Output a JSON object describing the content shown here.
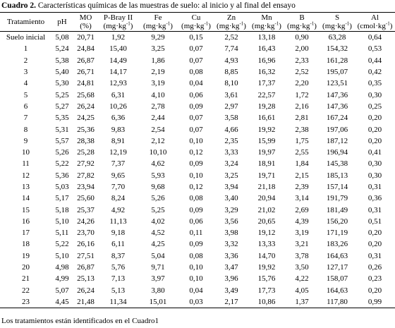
{
  "caption": {
    "label": "Cuadro 2.",
    "text": "Características químicas de las muestras de suelo: al inicio y al final del ensayo"
  },
  "table": {
    "headers": [
      {
        "name": "Tratamiento"
      },
      {
        "name": "pH"
      },
      {
        "name": "MO",
        "unit": "(%)"
      },
      {
        "name": "P-Bray II",
        "unit": "(mg·kg",
        "unit_sup": "-1",
        "unit_end": ")"
      },
      {
        "name": "Fe",
        "unit": "(mg·kg",
        "unit_sup": "-1",
        "unit_end": ")"
      },
      {
        "name": "Cu",
        "unit": "(mg·kg",
        "unit_sup": "-1",
        "unit_end": ")"
      },
      {
        "name": "Zn",
        "unit": "(mg·kg",
        "unit_sup": "-1",
        "unit_end": ")"
      },
      {
        "name": "Mn",
        "unit": "(mg·kg",
        "unit_sup": "-1",
        "unit_end": ")"
      },
      {
        "name": "B",
        "unit": "(mg·kg",
        "unit_sup": "-1",
        "unit_end": ")"
      },
      {
        "name": "S",
        "unit": "(mg·kg",
        "unit_sup": "-1",
        "unit_end": ")"
      },
      {
        "name": "Al",
        "unit": "(cmol·kg",
        "unit_sup": "-1",
        "unit_end": ")"
      }
    ],
    "rows": [
      [
        "Suelo inicial",
        "5,08",
        "20,71",
        "1,92",
        "9,29",
        "0,15",
        "2,52",
        "13,18",
        "0,90",
        "63,28",
        "0,64"
      ],
      [
        "1",
        "5,24",
        "24,84",
        "15,40",
        "3,25",
        "0,07",
        "7,74",
        "16,43",
        "2,00",
        "154,32",
        "0,53"
      ],
      [
        "2",
        "5,38",
        "26,87",
        "14,49",
        "1,86",
        "0,07",
        "4,93",
        "16,96",
        "2,33",
        "161,28",
        "0,44"
      ],
      [
        "3",
        "5,40",
        "26,71",
        "14,17",
        "2,19",
        "0,08",
        "8,85",
        "16,32",
        "2,52",
        "195,07",
        "0,42"
      ],
      [
        "4",
        "5,30",
        "24,81",
        "12,93",
        "3,19",
        "0,04",
        "8,10",
        "17,37",
        "2,20",
        "123,51",
        "0,35"
      ],
      [
        "5",
        "5,25",
        "25,68",
        "6,31",
        "4,10",
        "0,06",
        "3,61",
        "22,57",
        "1,72",
        "147,36",
        "0,30"
      ],
      [
        "6",
        "5,27",
        "26,24",
        "10,26",
        "2,78",
        "0,09",
        "2,97",
        "19,28",
        "2,16",
        "147,36",
        "0,25"
      ],
      [
        "7",
        "5,35",
        "24,25",
        "6,36",
        "2,44",
        "0,07",
        "3,58",
        "16,61",
        "2,81",
        "167,24",
        "0,20"
      ],
      [
        "8",
        "5,31",
        "25,36",
        "9,83",
        "2,54",
        "0,07",
        "4,66",
        "19,92",
        "2,38",
        "197,06",
        "0,20"
      ],
      [
        "9",
        "5,57",
        "28,38",
        "8,91",
        "2,12",
        "0,10",
        "2,35",
        "15,99",
        "1,75",
        "187,12",
        "0,20"
      ],
      [
        "10",
        "5,26",
        "25,28",
        "12,19",
        "10,10",
        "0,12",
        "3,33",
        "19,97",
        "2,55",
        "196,94",
        "0,41"
      ],
      [
        "11",
        "5,22",
        "27,92",
        "7,37",
        "4,62",
        "0,09",
        "3,24",
        "18,91",
        "1,84",
        "145,38",
        "0,30"
      ],
      [
        "12",
        "5,36",
        "27,82",
        "9,65",
        "5,93",
        "0,10",
        "3,25",
        "19,71",
        "2,15",
        "185,13",
        "0,30"
      ],
      [
        "13",
        "5,03",
        "23,94",
        "7,70",
        "9,68",
        "0,12",
        "3,94",
        "21,18",
        "2,39",
        "157,14",
        "0,31"
      ],
      [
        "14",
        "5,17",
        "25,60",
        "8,24",
        "5,26",
        "0,08",
        "3,40",
        "20,94",
        "3,14",
        "191,79",
        "0,36"
      ],
      [
        "15",
        "5,18",
        "25,37",
        "4,92",
        "5,25",
        "0,09",
        "3,29",
        "21,02",
        "2,69",
        "181,49",
        "0,31"
      ],
      [
        "16",
        "5,10",
        "24,26",
        "11,13",
        "4,02",
        "0,06",
        "3,56",
        "20,65",
        "4,39",
        "156,20",
        "0,51"
      ],
      [
        "17",
        "5,11",
        "23,70",
        "9,18",
        "4,52",
        "0,11",
        "3,98",
        "19,12",
        "3,19",
        "171,19",
        "0,20"
      ],
      [
        "18",
        "5,22",
        "26,16",
        "6,11",
        "4,25",
        "0,09",
        "3,32",
        "13,33",
        "3,21",
        "183,26",
        "0,20"
      ],
      [
        "19",
        "5,10",
        "27,51",
        "8,37",
        "5,04",
        "0,08",
        "3,36",
        "14,70",
        "3,78",
        "164,63",
        "0,31"
      ],
      [
        "20",
        "4,98",
        "26,87",
        "5,76",
        "9,71",
        "0,10",
        "3,47",
        "19,92",
        "3,50",
        "127,17",
        "0,26"
      ],
      [
        "21",
        "4,99",
        "25,13",
        "7,13",
        "3,97",
        "0,10",
        "3,96",
        "15,76",
        "4,22",
        "158,07",
        "0,23"
      ],
      [
        "22",
        "5,07",
        "26,24",
        "5,13",
        "3,80",
        "0,04",
        "3,49",
        "17,73",
        "4,05",
        "164,63",
        "0,20"
      ],
      [
        "23",
        "4,45",
        "21,48",
        "11,34",
        "15,01",
        "0,03",
        "2,17",
        "10,86",
        "1,37",
        "117,80",
        "0,99"
      ]
    ]
  },
  "footnote": "Los tratamientos están identificados en el Cuadro1"
}
